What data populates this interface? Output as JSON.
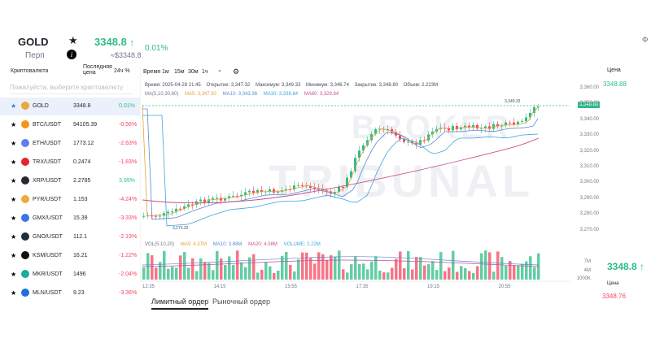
{
  "header": {
    "symbol": "GOLD",
    "type": "Перп",
    "price": "3348.8",
    "arrow": "↑",
    "usd": "≈$3348.8",
    "change": "0.01%",
    "right_fragment": "Ф"
  },
  "list": {
    "col_name": "Криптовалюта",
    "col_price_l1": "Последняя",
    "col_price_l2": "цена",
    "col_change": "24ч %",
    "search_placeholder": "Пожалуйста, выберите криптовалюту",
    "rows": [
      {
        "name": "GOLD",
        "price": "3348.8",
        "change": "0.01%",
        "dir": "up",
        "color": "#e9a83a"
      },
      {
        "name": "BTC/USDT",
        "price": "94105.39",
        "change": "-0.56%",
        "dir": "down",
        "color": "#f7931a"
      },
      {
        "name": "ETH/USDT",
        "price": "1773.12",
        "change": "-2.63%",
        "dir": "down",
        "color": "#627eea"
      },
      {
        "name": "TRX/USDT",
        "price": "0.2474",
        "change": "-1.83%",
        "dir": "down",
        "color": "#e5232b"
      },
      {
        "name": "XRP/USDT",
        "price": "2.2785",
        "change": "3.99%",
        "dir": "up",
        "color": "#23292f"
      },
      {
        "name": "PYR/USDT",
        "price": "1.153",
        "change": "-4.24%",
        "dir": "down",
        "color": "#f2a93b"
      },
      {
        "name": "GMX/USDT",
        "price": "15.39",
        "change": "-3.33%",
        "dir": "down",
        "color": "#3b74e8"
      },
      {
        "name": "GNO/USDT",
        "price": "112.1",
        "change": "-2.19%",
        "dir": "down",
        "color": "#1b2f3d"
      },
      {
        "name": "KSM/USDT",
        "price": "16.21",
        "change": "-1.22%",
        "dir": "down",
        "color": "#111111"
      },
      {
        "name": "MKR/USDT",
        "price": "1496",
        "change": "-2.04%",
        "dir": "down",
        "color": "#1aab9b"
      },
      {
        "name": "MLN/USDT",
        "price": "9.23",
        "change": "-3.36%",
        "dir": "down",
        "color": "#1f70d8"
      }
    ]
  },
  "toolbar": {
    "time": "Время",
    "tf": [
      "1м",
      "15м",
      "30м",
      "1ч"
    ],
    "chevron": "⌄",
    "gear": "⚙"
  },
  "chart_info": {
    "time": "Время: 2025-04-28 21:45",
    "open": "Открытие: 3,347.32",
    "high": "Максимум: 3,349.33",
    "low": "Минимум: 3,346.74",
    "close": "Закрытие: 3,348.80",
    "volume": "Объем: 2.223M"
  },
  "ma": {
    "label": "MA(5,10,30,60)",
    "ma5": "MA5: 3,347.92",
    "ma10": "MA10: 3,343.36",
    "ma30": "MA30: 3,338.64",
    "ma60": "MA60: 3,329.84",
    "colors": {
      "ma5": "#e6a23c",
      "ma10": "#5a8ad6",
      "ma30": "#3fa3e0",
      "ma60": "#c94f8f"
    }
  },
  "vol_info": {
    "label": "VOL(5,10,20)",
    "ma5": "MA5: 4.37M",
    "ma10": "MA10: 3.88M",
    "ma20": "MA20: 4.08M",
    "volume": "VOLUME: 2.22M"
  },
  "y_ticks": [
    "3,360.00",
    "3,350.00",
    "3,340.00",
    "3,330.00",
    "3,320.00",
    "3,310.00",
    "3,300.00",
    "3,290.00",
    "3,280.00",
    "3,270.00"
  ],
  "vol_ticks": [
    "7M",
    "4M",
    "1000K"
  ],
  "x_ticks": [
    "12:35",
    "14:15",
    "15:55",
    "17:35",
    "19:15",
    "20:55"
  ],
  "current_price_tag": "3,348.80",
  "high_marker": "3,349.33",
  "low_marker": "3,273.32",
  "tabs": {
    "limit": "Лимитный ордер",
    "market": "Рыночный ордер"
  },
  "right": {
    "label1": "Цена",
    "value1": "3348.88",
    "big_price": "3348.8 ↑",
    "label2": "Цена",
    "value2": "3348.76"
  },
  "watermark": {
    "line1": "BROKER",
    "line2": "TRIBUNAL"
  },
  "colors": {
    "up": "#2ebd85",
    "down": "#f6465d"
  }
}
